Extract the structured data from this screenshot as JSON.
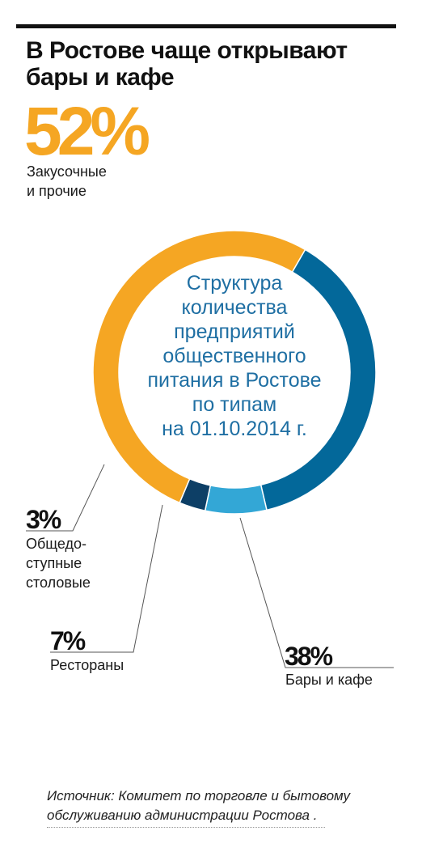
{
  "title": "В Ростове чаще открывают бары и кафе",
  "center_text": [
    "Структура",
    "количества",
    "предприятий",
    "общественного",
    "питания в Ростове",
    "по типам",
    "на 01.10.2014 г."
  ],
  "source": "Источник:  Комитет по торговле и бытовому обслуживанию администрации Ростова .",
  "chart_data": {
    "type": "pie",
    "variant": "donut",
    "slices": [
      {
        "value": 38,
        "pct_label": "38%",
        "label_lines": [
          "Бары и кафе"
        ],
        "color": "#03689a"
      },
      {
        "value": 7,
        "pct_label": "7%",
        "label_lines": [
          "Рестораны"
        ],
        "color": "#33a7d6"
      },
      {
        "value": 3,
        "pct_label": "3%",
        "label_lines": [
          "Общедо-",
          "ступные",
          "столовые"
        ],
        "color": "#0d3f66"
      },
      {
        "value": 52,
        "pct_label": "52%",
        "label_lines": [
          "Закусочные",
          "и прочие"
        ],
        "color": "#f5a623"
      }
    ]
  }
}
